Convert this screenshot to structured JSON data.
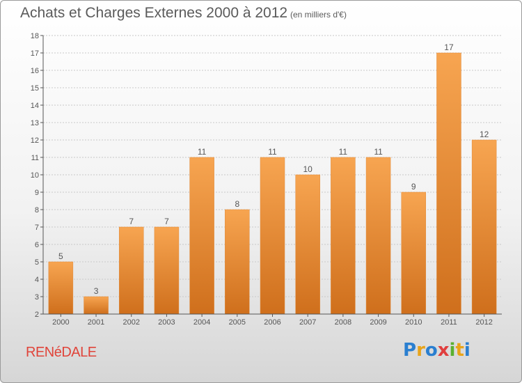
{
  "header": {
    "title": "Achats et Charges Externes 2000 à 2012",
    "subtitle": "(en milliers d'€)"
  },
  "footer": {
    "town": "RENéDALE",
    "logo_text": "Proxiti"
  },
  "colors": {
    "bar_top": "#f7a551",
    "bar_bottom": "#cf6f1c",
    "grid": "#c8c8c8",
    "axis": "#555555",
    "label": "#555555",
    "town": "#e0443a"
  },
  "chart_data": {
    "type": "bar",
    "title": "Achats et Charges Externes 2000 à 2012",
    "subtitle": "(en milliers d'€)",
    "categories": [
      "2000",
      "2001",
      "2002",
      "2003",
      "2004",
      "2005",
      "2006",
      "2007",
      "2008",
      "2009",
      "2010",
      "2011",
      "2012"
    ],
    "values": [
      5,
      3,
      7,
      7,
      11,
      8,
      11,
      10,
      11,
      11,
      9,
      17,
      12
    ],
    "data_labels": [
      "5",
      "3",
      "7",
      "7",
      "11",
      "8",
      "11",
      "10",
      "11",
      "11",
      "9",
      "17",
      "12"
    ],
    "y_ticks": [
      "2",
      "3",
      "4",
      "5",
      "6",
      "7",
      "8",
      "9",
      "10",
      "11",
      "12",
      "13",
      "14",
      "15",
      "16",
      "17",
      "18"
    ],
    "ylim": [
      2,
      18
    ],
    "xlabel": "",
    "ylabel": "",
    "grid": true,
    "legend": "none"
  }
}
